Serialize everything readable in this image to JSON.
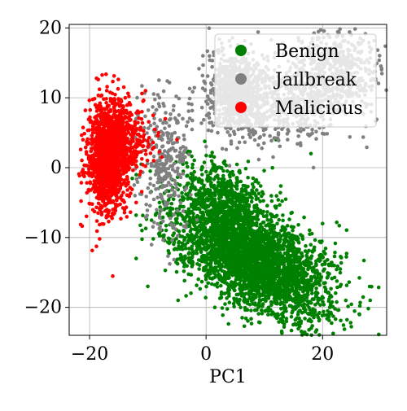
{
  "chart_data": {
    "type": "scatter",
    "title": "",
    "xlabel": "PC1",
    "ylabel": "",
    "xlim": [
      -23.5,
      31
    ],
    "ylim": [
      -24,
      20.5
    ],
    "xticks": [
      -20,
      0,
      20
    ],
    "yticks": [
      -20,
      -10,
      0,
      10,
      20
    ],
    "xtick_labels": [
      "−20",
      "0",
      "20"
    ],
    "ytick_labels": [
      "−20",
      "−10",
      "0",
      "10",
      "20"
    ],
    "grid": true,
    "legend_position": "top-right",
    "series": [
      {
        "name": "Benign",
        "color": "#008000",
        "clusters": [
          {
            "cx": 8,
            "cy": -13,
            "sx": 6.5,
            "sy": 4.2,
            "rho": -0.55,
            "n": 3400
          },
          {
            "cx": 3,
            "cy": -4,
            "sx": 3.5,
            "sy": 2.5,
            "rho": -0.3,
            "n": 500
          }
        ],
        "extremes": [
          [
            -12,
            -13
          ],
          [
            -11,
            -9
          ],
          [
            24,
            -19
          ],
          [
            22,
            -14
          ],
          [
            18,
            2
          ],
          [
            16,
            6
          ],
          [
            12,
            4
          ],
          [
            20,
            -8
          ],
          [
            -8,
            -5
          ],
          [
            -10,
            -17
          ],
          [
            23,
            -17
          ]
        ]
      },
      {
        "name": "Jailbreak",
        "color": "#808080",
        "clusters": [
          {
            "cx": 5,
            "cy": 11,
            "sx": 2.5,
            "sy": 3.0,
            "rho": 0,
            "n": 700
          },
          {
            "cx": 13,
            "cy": 9,
            "sx": 5.0,
            "sy": 2.6,
            "rho": 0,
            "n": 500
          },
          {
            "cx": 22,
            "cy": 14,
            "sx": 4.0,
            "sy": 3.0,
            "rho": 0,
            "n": 550
          },
          {
            "cx": -7,
            "cy": 1,
            "sx": 2.4,
            "sy": 5.5,
            "rho": 0,
            "n": 300
          }
        ],
        "extremes": [
          [
            -13,
            4
          ],
          [
            -12,
            7
          ],
          [
            -8,
            10
          ],
          [
            2,
            5
          ],
          [
            0,
            3
          ],
          [
            14,
            4
          ],
          [
            25,
            12
          ],
          [
            27,
            11
          ],
          [
            28,
            14
          ],
          [
            -4,
            7
          ],
          [
            -6,
            -4
          ]
        ]
      },
      {
        "name": "Malicious",
        "color": "#ff0000",
        "clusters": [
          {
            "cx": -17,
            "cy": 1.5,
            "sx": 1.6,
            "sy": 3.8,
            "rho": 0,
            "n": 1400
          },
          {
            "cx": -14,
            "cy": 4,
            "sx": 2.2,
            "sy": 2.6,
            "rho": 0,
            "n": 350
          }
        ],
        "extremes": [
          [
            -20,
            7
          ],
          [
            -19,
            9
          ],
          [
            -13,
            9
          ],
          [
            -11,
            8
          ],
          [
            -10,
            3
          ],
          [
            -7,
            7
          ],
          [
            -5,
            4
          ],
          [
            -12,
            -5
          ],
          [
            -14,
            -6
          ],
          [
            -16,
            -6
          ],
          [
            -9,
            1
          ]
        ]
      }
    ]
  }
}
